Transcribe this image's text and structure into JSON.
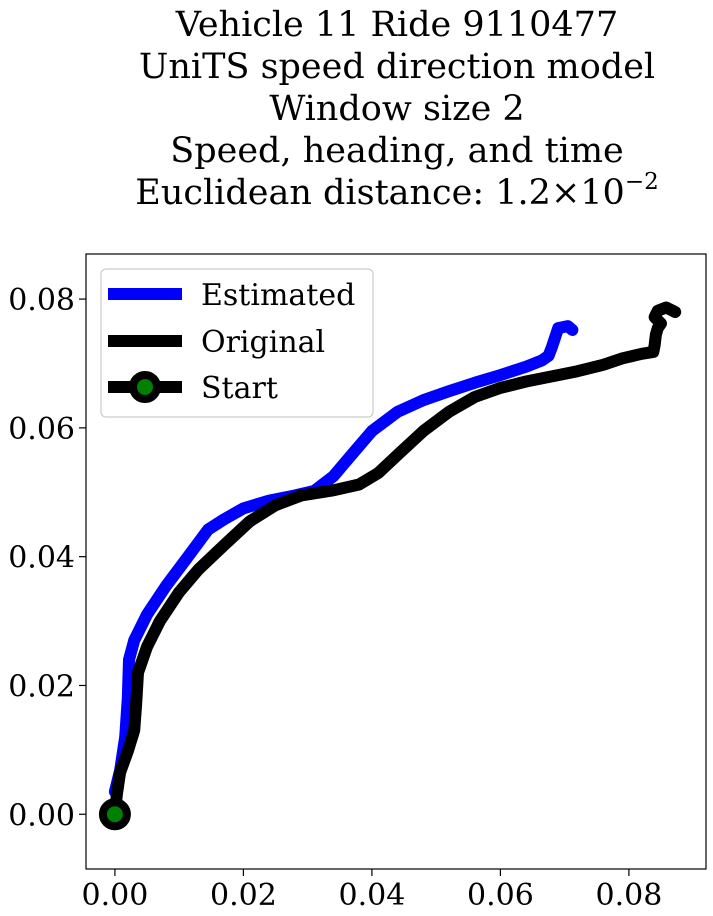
{
  "chart_data": {
    "type": "line",
    "title_lines": [
      "Vehicle 11 Ride 9110477",
      "UniTS speed direction model",
      "Window size 2",
      "Speed, heading, and time"
    ],
    "title_distance_prefix": "Euclidean distance: 1.2×10",
    "title_distance_exponent": "−2",
    "xlim": [
      -0.0045,
      0.092
    ],
    "ylim": [
      -0.0085,
      0.087
    ],
    "xticks": [
      0.0,
      0.02,
      0.04,
      0.06,
      0.08
    ],
    "xtick_labels": [
      "0.00",
      "0.02",
      "0.04",
      "0.06",
      "0.08"
    ],
    "yticks": [
      0.0,
      0.02,
      0.04,
      0.06,
      0.08
    ],
    "ytick_labels": [
      "0.00",
      "0.02",
      "0.04",
      "0.06",
      "0.08"
    ],
    "legend_position": "upper-left",
    "series": [
      {
        "name": "Estimated",
        "color": "#0000ff",
        "points": [
          [
            0.0,
            0.0035
          ],
          [
            0.0008,
            0.0068
          ],
          [
            0.0016,
            0.012
          ],
          [
            0.002,
            0.018
          ],
          [
            0.0022,
            0.024
          ],
          [
            0.003,
            0.027
          ],
          [
            0.005,
            0.031
          ],
          [
            0.008,
            0.0355
          ],
          [
            0.011,
            0.0395
          ],
          [
            0.0145,
            0.0442
          ],
          [
            0.017,
            0.0458
          ],
          [
            0.02,
            0.0475
          ],
          [
            0.024,
            0.0487
          ],
          [
            0.028,
            0.0495
          ],
          [
            0.031,
            0.0502
          ],
          [
            0.034,
            0.0525
          ],
          [
            0.037,
            0.056
          ],
          [
            0.04,
            0.0595
          ],
          [
            0.044,
            0.0625
          ],
          [
            0.048,
            0.0643
          ],
          [
            0.052,
            0.0657
          ],
          [
            0.056,
            0.067
          ],
          [
            0.06,
            0.0682
          ],
          [
            0.064,
            0.0695
          ],
          [
            0.0665,
            0.0705
          ],
          [
            0.0675,
            0.0712
          ],
          [
            0.068,
            0.0725
          ],
          [
            0.0685,
            0.074
          ],
          [
            0.069,
            0.0755
          ],
          [
            0.0705,
            0.0758
          ],
          [
            0.0712,
            0.0752
          ]
        ]
      },
      {
        "name": "Original",
        "color": "#000000",
        "points": [
          [
            0.0,
            0.0
          ],
          [
            0.0003,
            0.003
          ],
          [
            0.0008,
            0.0065
          ],
          [
            0.002,
            0.0098
          ],
          [
            0.003,
            0.013
          ],
          [
            0.0033,
            0.017
          ],
          [
            0.0036,
            0.022
          ],
          [
            0.005,
            0.026
          ],
          [
            0.007,
            0.03
          ],
          [
            0.01,
            0.0345
          ],
          [
            0.013,
            0.038
          ],
          [
            0.017,
            0.0418
          ],
          [
            0.021,
            0.0455
          ],
          [
            0.025,
            0.048
          ],
          [
            0.029,
            0.0495
          ],
          [
            0.034,
            0.0503
          ],
          [
            0.038,
            0.0512
          ],
          [
            0.041,
            0.053
          ],
          [
            0.044,
            0.0558
          ],
          [
            0.048,
            0.0595
          ],
          [
            0.052,
            0.0625
          ],
          [
            0.056,
            0.0648
          ],
          [
            0.06,
            0.0662
          ],
          [
            0.064,
            0.0672
          ],
          [
            0.068,
            0.068
          ],
          [
            0.072,
            0.0688
          ],
          [
            0.076,
            0.0698
          ],
          [
            0.079,
            0.0708
          ],
          [
            0.082,
            0.0715
          ],
          [
            0.0838,
            0.0718
          ],
          [
            0.084,
            0.0728
          ],
          [
            0.0842,
            0.0745
          ],
          [
            0.0845,
            0.0755
          ],
          [
            0.085,
            0.0762
          ],
          [
            0.084,
            0.0772
          ],
          [
            0.0845,
            0.0782
          ],
          [
            0.0858,
            0.0787
          ],
          [
            0.0872,
            0.078
          ]
        ]
      }
    ],
    "start": {
      "name": "Start",
      "x": 0.0,
      "y": 0.0,
      "color": "#008000",
      "edge_color": "#000000"
    }
  }
}
